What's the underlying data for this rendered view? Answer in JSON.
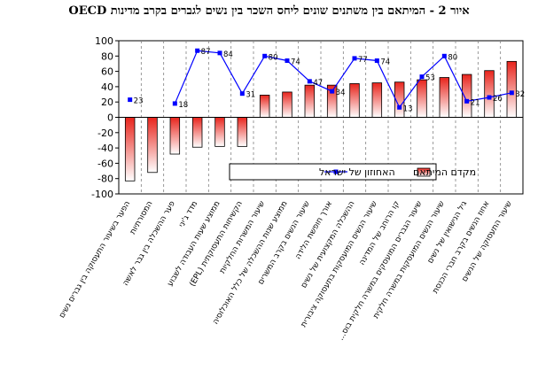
{
  "chart_data": {
    "type": "bar",
    "title": "איור 2 - המיתאם בין משתנים שונים ליחס השכר בין נשים לגברים בקרב מדינות OECD",
    "categories": [
      "הפער בשיעור התעסוקה בין גברים נשים",
      "המסורתיות",
      "פער ההשכלה בין גבר לאשה",
      "מדד ג'יני",
      "ממוצע שעות העבודה לשבוע",
      "הקשיחות התעסוקתית (EPL)",
      "שיעור המשרות החלקיות",
      "ממוצע שנות ההשכלה של כלל האוכלוסיה",
      "שיעור הנשים בקרב המשרים",
      "אורך חופשת הלידה",
      "ההשכלה המקצועית של נשים",
      "שיעור הנשים המועסקות בתעסוקה ציבורית",
      "קו הרוחב של המדינה",
      "שיעור הגברים המועסקים במשרה חלקית בוס...",
      "שיעור הנשים המועסקות במשרה חלקית",
      "גיל הנישואין של נשים",
      "אחוז הנשים בקרב חברי הכנסת",
      "שיעור התעסוקה של הנשים"
    ],
    "series": [
      {
        "name": "מקדם המיתאם",
        "values": [
          -83,
          -72,
          -48,
          -39,
          -38,
          -38,
          29,
          33,
          42,
          42,
          44,
          45,
          46,
          49,
          52,
          56,
          61,
          73
        ]
      },
      {
        "name": "האחוזון של ישראל",
        "values": [
          23,
          null,
          18,
          87,
          84,
          31,
          80,
          74,
          47,
          34,
          77,
          74,
          13,
          53,
          80,
          21,
          26,
          32
        ]
      }
    ],
    "ylim": [
      -100,
      100
    ],
    "yticks": [
      -100,
      -80,
      -60,
      -40,
      -20,
      0,
      20,
      40,
      60,
      80,
      100
    ],
    "grid": false,
    "legend_position": "center-right",
    "colors": {
      "bar_top": "#e8241c",
      "bar_bottom": "#ffffff",
      "bar_stroke": "#000000",
      "line": "#0000ff",
      "plot_bg": "#ffffff",
      "separator": "#808080"
    }
  }
}
